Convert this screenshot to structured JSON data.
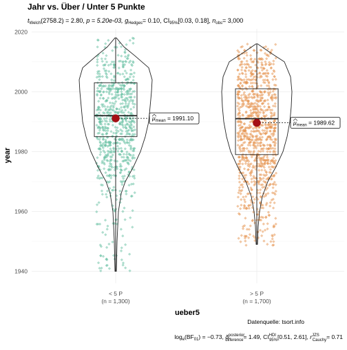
{
  "chart_data": {
    "type": "violin-box-scatter",
    "title": "Jahr vs. Über / Unter 5 Punkte",
    "subtitle": {
      "t_stat": "t",
      "t_sub": "Welch",
      "t_df": "(2758.2) = 2.80,",
      "p_text": "p = 5.20e-03,",
      "g_sym": "g",
      "g_sub": "Hedges",
      "g_val": "= 0.10,",
      "ci_sym": "CI",
      "ci_sub": "95%",
      "ci_val": "[0.03, 0.18],",
      "n_sym": "n",
      "n_sub": "obs",
      "n_val": "= 3,000"
    },
    "xlabel": "ueber5",
    "ylabel": "year",
    "ylim": [
      1936,
      2021
    ],
    "yticks": [
      1940,
      1960,
      1980,
      2000,
      2020
    ],
    "grid": true,
    "groups": [
      {
        "label": "< 5 P",
        "n_label": "(n = 1,300)",
        "color": "#43b08c",
        "n": 1300,
        "min": 1940,
        "q1": 1985,
        "median": 1992,
        "q3": 2003,
        "max": 2018,
        "mean": 1991.1,
        "mean_label_sym": "μ",
        "mean_label_sub": "mean",
        "mean_label_val": "= 1991.10"
      },
      {
        "label": "> 5 P",
        "n_label": "(n = 1,700)",
        "color": "#e07b28",
        "n": 1700,
        "min": 1949,
        "q1": 1979,
        "median": 1991,
        "q3": 2001,
        "max": 2016,
        "mean": 1989.62,
        "mean_label_sym": "μ",
        "mean_label_sub": "mean",
        "mean_label_val": "= 1989.62"
      }
    ],
    "caption": {
      "source": "Datenquelle: tsort.info",
      "bf_text": "log",
      "bf_sub": "e",
      "bf_val": "(BF",
      "bf_sub2": "01",
      "bf_end": ") = −0.73,",
      "delta_sym": "δ",
      "delta_sup": "posterior",
      "delta_sub": "difference",
      "delta_val": "= 1.49,",
      "ci_sym": "CI",
      "ci_sup": "HDI",
      "ci_sub": "95%",
      "ci_val": "[0.51, 2.61],",
      "r_sym": "r",
      "r_sup": "JZS",
      "r_sub": "Cauchy",
      "r_val": "= 0.71"
    }
  }
}
